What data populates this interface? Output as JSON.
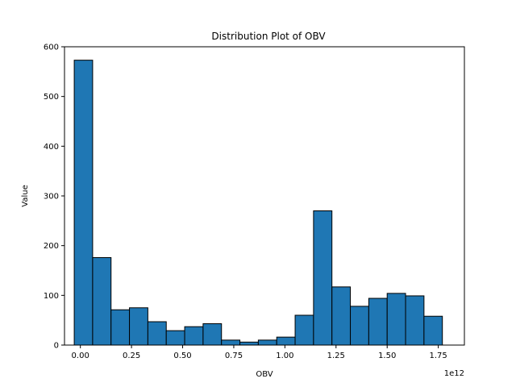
{
  "chart_data": {
    "type": "bar",
    "title": "Distribution Plot of OBV",
    "xlabel": "OBV",
    "ylabel": "Value",
    "x_offset_text": "1e12",
    "xlim": [
      -0.0776,
      1.8776
    ],
    "ylim": [
      0,
      600
    ],
    "bins": [
      {
        "x0": -0.03,
        "x1": 0.06,
        "value": 573
      },
      {
        "x0": 0.06,
        "x1": 0.15,
        "value": 176
      },
      {
        "x0": 0.15,
        "x1": 0.24,
        "value": 71
      },
      {
        "x0": 0.24,
        "x1": 0.33,
        "value": 75
      },
      {
        "x0": 0.33,
        "x1": 0.42,
        "value": 47
      },
      {
        "x0": 0.42,
        "x1": 0.51,
        "value": 29
      },
      {
        "x0": 0.51,
        "x1": 0.6,
        "value": 37
      },
      {
        "x0": 0.6,
        "x1": 0.69,
        "value": 43
      },
      {
        "x0": 0.69,
        "x1": 0.78,
        "value": 10
      },
      {
        "x0": 0.78,
        "x1": 0.87,
        "value": 6
      },
      {
        "x0": 0.87,
        "x1": 0.96,
        "value": 10
      },
      {
        "x0": 0.96,
        "x1": 1.05,
        "value": 16
      },
      {
        "x0": 1.05,
        "x1": 1.14,
        "value": 60
      },
      {
        "x0": 1.14,
        "x1": 1.23,
        "value": 270
      },
      {
        "x0": 1.23,
        "x1": 1.32,
        "value": 117
      },
      {
        "x0": 1.32,
        "x1": 1.41,
        "value": 78
      },
      {
        "x0": 1.41,
        "x1": 1.5,
        "value": 94
      },
      {
        "x0": 1.5,
        "x1": 1.59,
        "value": 104
      },
      {
        "x0": 1.59,
        "x1": 1.68,
        "value": 99
      },
      {
        "x0": 1.68,
        "x1": 1.77,
        "value": 58
      }
    ],
    "xticks": [
      {
        "value": 0.0,
        "label": "0.00"
      },
      {
        "value": 0.25,
        "label": "0.25"
      },
      {
        "value": 0.5,
        "label": "0.50"
      },
      {
        "value": 0.75,
        "label": "0.75"
      },
      {
        "value": 1.0,
        "label": "1.00"
      },
      {
        "value": 1.25,
        "label": "1.25"
      },
      {
        "value": 1.5,
        "label": "1.50"
      },
      {
        "value": 1.75,
        "label": "1.75"
      }
    ],
    "yticks": [
      {
        "value": 0,
        "label": "0"
      },
      {
        "value": 100,
        "label": "100"
      },
      {
        "value": 200,
        "label": "200"
      },
      {
        "value": 300,
        "label": "300"
      },
      {
        "value": 400,
        "label": "400"
      },
      {
        "value": 500,
        "label": "500"
      },
      {
        "value": 600,
        "label": "600"
      }
    ],
    "grid": false,
    "colors": {
      "bar_fill": "#1f77b4",
      "bar_edge": "#000000",
      "axes": "#000000"
    }
  }
}
